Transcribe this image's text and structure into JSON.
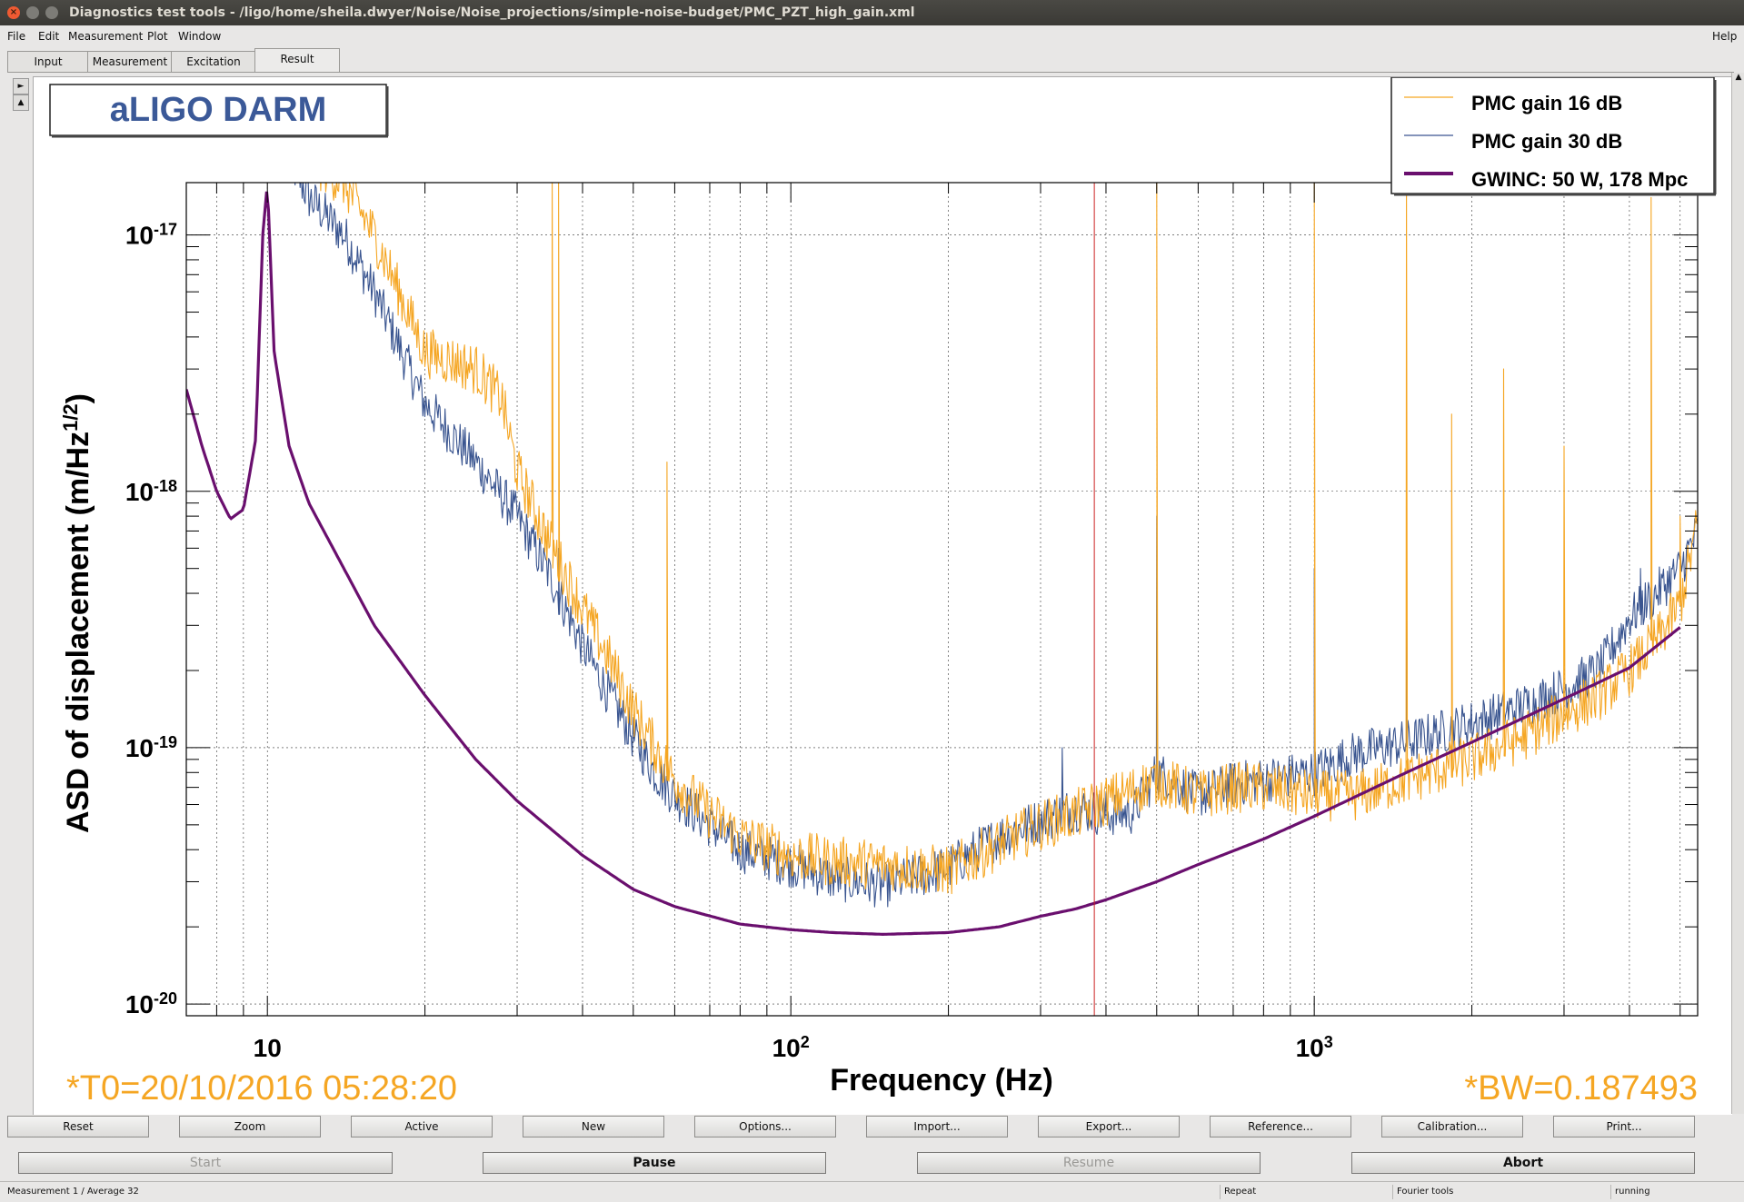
{
  "window": {
    "title": "Diagnostics test tools - /ligo/home/sheila.dwyer/Noise/Noise_projections/simple-noise-budget/PMC_PZT_high_gain.xml",
    "close_glyph": "×"
  },
  "menu": {
    "file": "File",
    "edit": "Edit",
    "measurement": "Measurement",
    "plot": "Plot",
    "window": "Window",
    "help": "Help"
  },
  "tabs": [
    "Input",
    "Measurement",
    "Excitation",
    "Result"
  ],
  "active_tab": "Result",
  "plot": {
    "title_box": "aLIGO DARM",
    "legend": [
      "PMC gain 16 dB",
      "PMC gain 30 dB",
      "GWINC: 50 W, 178 Mpc"
    ],
    "t0": "*T0=20/10/2016 05:28:20",
    "bw": "*BW=0.187493"
  },
  "chart_data": {
    "type": "line",
    "xlabel": "Frequency (Hz)",
    "ylabel": "ASD of displacement (m/Hz^1/2)",
    "xscale": "log",
    "yscale": "log",
    "xlim": [
      7.0,
      5400
    ],
    "ylim": [
      9e-21,
      1.6e-17
    ],
    "x_tick_labels": [
      "10",
      "10^2",
      "10^3"
    ],
    "y_tick_labels": [
      "10^-17",
      "10^-18",
      "10^-19",
      "10^-20"
    ],
    "grid": true,
    "legend_position": "top-right",
    "colors": {
      "orange": "#f5a623",
      "blue": "#3a5590",
      "purple": "#6a0f6e",
      "marker": "#cc2222"
    },
    "series": [
      {
        "name": "PMC gain 16 dB",
        "color": "#f5a623",
        "x": [
          12,
          14,
          16,
          20,
          25,
          28,
          30,
          35,
          40,
          45,
          50,
          55,
          60,
          70,
          80,
          100,
          120,
          150,
          200,
          250,
          300,
          350,
          400,
          450,
          500,
          600,
          700,
          800,
          1000,
          1200,
          1500,
          2000,
          2500,
          3000,
          3500,
          4000,
          4500,
          5000,
          5400
        ],
        "y": [
          2e-17,
          1.6e-17,
          1e-17,
          3.5e-18,
          3e-18,
          2.3e-18,
          1.2e-18,
          6e-19,
          3.5e-19,
          2.2e-19,
          1.4e-19,
          1e-19,
          7.5e-20,
          5.5e-20,
          4.5e-20,
          3.8e-20,
          3.6e-20,
          3.5e-20,
          3.3e-20,
          4.2e-20,
          5e-20,
          5.5e-20,
          6.2e-20,
          6.8e-20,
          7.5e-20,
          6.5e-20,
          7e-20,
          7e-20,
          6.5e-20,
          6.5e-20,
          7.5e-20,
          9e-20,
          1.1e-19,
          1.35e-19,
          1.6e-19,
          2e-19,
          2.6e-19,
          3.6e-19,
          7.5e-19
        ],
        "peaks": [
          [
            35,
            1.6e-17
          ],
          [
            36,
            1.6e-17
          ],
          [
            58,
            1.3e-18
          ],
          [
            500,
            1.6e-17
          ],
          [
            1000,
            1.6e-17
          ],
          [
            1500,
            1.6e-17
          ],
          [
            1830,
            2e-18
          ],
          [
            2300,
            3e-18
          ],
          [
            3000,
            1.5e-18
          ],
          [
            4400,
            1.4e-17
          ],
          [
            5000,
            8e-19
          ]
        ]
      },
      {
        "name": "PMC gain 30 dB",
        "color": "#3a5590",
        "x": [
          11,
          12,
          14,
          16,
          20,
          25,
          30,
          35,
          40,
          45,
          50,
          55,
          60,
          70,
          80,
          100,
          120,
          150,
          200,
          250,
          300,
          350,
          400,
          450,
          500,
          600,
          700,
          800,
          1000,
          1200,
          1500,
          2000,
          2500,
          3000,
          3500,
          4000,
          4500,
          5000,
          5400
        ],
        "y": [
          2e-17,
          1.4e-17,
          1e-17,
          6e-18,
          2.2e-18,
          1.3e-18,
          8e-19,
          4.5e-19,
          2.5e-19,
          1.6e-19,
          1.1e-19,
          8e-20,
          6.5e-20,
          5e-20,
          4e-20,
          3.5e-20,
          3.1e-20,
          2.9e-20,
          3.4e-20,
          4.5e-20,
          5.2e-20,
          5.8e-20,
          5.5e-20,
          5.6e-20,
          8e-20,
          6.5e-20,
          7.2e-20,
          7.5e-20,
          8e-20,
          9.5e-20,
          1.05e-19,
          1.25e-19,
          1.45e-19,
          1.7e-19,
          2e-19,
          3.2e-19,
          4e-19,
          5e-19,
          7e-19
        ],
        "peaks": [
          [
            36,
            6e-19
          ],
          [
            330,
            1e-19
          ],
          [
            500,
            8e-19
          ],
          [
            1000,
            5e-19
          ],
          [
            1500,
            6e-19
          ],
          [
            4200,
            5e-19
          ]
        ]
      },
      {
        "name": "GWINC: 50 W, 178 Mpc",
        "color": "#6a0f6e",
        "x": [
          7.0,
          7.5,
          8,
          8.5,
          9,
          9.5,
          9.8,
          10,
          10.3,
          11,
          12,
          14,
          16,
          20,
          25,
          30,
          40,
          50,
          60,
          80,
          100,
          120,
          150,
          200,
          250,
          300,
          350,
          400,
          500,
          600,
          800,
          1000,
          1500,
          2000,
          3000,
          4000,
          5000
        ],
        "y": [
          2.5e-18,
          1.5e-18,
          1e-18,
          7.8e-19,
          8.5e-19,
          1.6e-18,
          1e-17,
          1.6e-17,
          3.5e-18,
          1.5e-18,
          9e-19,
          5e-19,
          3e-19,
          1.6e-19,
          9e-20,
          6.2e-20,
          3.8e-20,
          2.8e-20,
          2.4e-20,
          2.05e-20,
          1.95e-20,
          1.9e-20,
          1.87e-20,
          1.9e-20,
          2e-20,
          2.2e-20,
          2.35e-20,
          2.55e-20,
          3e-20,
          3.5e-20,
          4.4e-20,
          5.4e-20,
          8e-20,
          1.05e-19,
          1.55e-19,
          2.05e-19,
          2.95e-19
        ]
      }
    ],
    "marker_frequency": 380
  },
  "buttons_row1": [
    "Reset",
    "Zoom",
    "Active",
    "New",
    "Options...",
    "Import...",
    "Export...",
    "Reference...",
    "Calibration...",
    "Print..."
  ],
  "buttons_row2": {
    "start": "Start",
    "pause": "Pause",
    "resume": "Resume",
    "abort": "Abort"
  },
  "status": {
    "measurement": "Measurement 1 / Average 32",
    "repeat": "Repeat",
    "tool": "Fourier tools",
    "state": "running"
  }
}
